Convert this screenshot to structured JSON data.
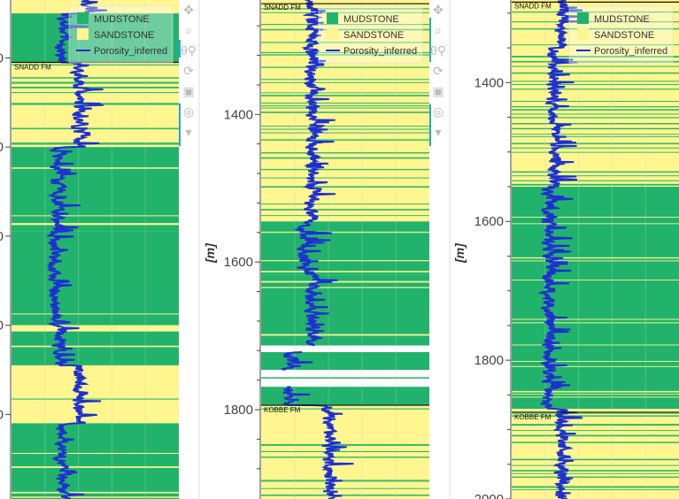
{
  "chart_data": {
    "type": "well-log-lithology",
    "legend": {
      "placement": "top-right",
      "entries": [
        {
          "label": "MUDSTONE",
          "color": "#21b36b",
          "kind": "patch"
        },
        {
          "label": "SANDSTONE",
          "color": "#fff68f",
          "kind": "patch"
        },
        {
          "label": "Porosity_inferred",
          "color": "#1f2fd1",
          "kind": "line"
        }
      ]
    },
    "colors": {
      "MUDSTONE": "#21b36b",
      "SANDSTONE": "#fff68f",
      "porosity": "#1f2fd1"
    },
    "grid": true,
    "panels": [
      {
        "ylabel": "",
        "ylim": [
          1200,
          1760
        ],
        "y_ticks": [
          1265,
          1365,
          1465,
          1565,
          1665
        ],
        "tick_labels": [
          "0",
          "0",
          "0",
          "0",
          "0"
        ],
        "formation_tops": [
          {
            "name": "SNADD FM",
            "depth": 1270
          }
        ],
        "zones": [
          {
            "from": 1200,
            "to": 1215,
            "base": "SANDSTONE",
            "streaks": 0.1,
            "phi": 0.45
          },
          {
            "from": 1215,
            "to": 1270,
            "base": "MUDSTONE",
            "streaks": 0.05,
            "phi": 0.3
          },
          {
            "from": 1270,
            "to": 1365,
            "base": "SANDSTONE",
            "streaks": 0.35,
            "phi": 0.4
          },
          {
            "from": 1365,
            "to": 1460,
            "base": "MUDSTONE",
            "streaks": 0.2,
            "phi": 0.27
          },
          {
            "from": 1460,
            "to": 1565,
            "base": "MUDSTONE",
            "streaks": 0.12,
            "phi": 0.25
          },
          {
            "from": 1565,
            "to": 1572,
            "base": "SANDSTONE",
            "streaks": 0,
            "phi": 0.3
          },
          {
            "from": 1572,
            "to": 1610,
            "base": "MUDSTONE",
            "streaks": 0.08,
            "phi": 0.28
          },
          {
            "from": 1610,
            "to": 1675,
            "base": "SANDSTONE",
            "streaks": 0.05,
            "phi": 0.4
          },
          {
            "from": 1675,
            "to": 1760,
            "base": "MUDSTONE",
            "streaks": 0.4,
            "phi": 0.3
          }
        ]
      },
      {
        "ylabel": "[m]",
        "ylim": [
          1245,
          1921
        ],
        "y_ticks": [
          1280,
          1320,
          1360,
          1400,
          1440,
          1480,
          1520,
          1560,
          1600,
          1640,
          1680,
          1720,
          1760,
          1800,
          1840,
          1880
        ],
        "tick_labels_major": {
          "1400": "1400",
          "1600": "1600",
          "1800": "1800"
        },
        "formation_tops": [
          {
            "name": "SNADD FM",
            "depth": 1250
          },
          {
            "name": "KOBBE FM",
            "depth": 1794
          }
        ],
        "zones": [
          {
            "from": 1245,
            "to": 1545,
            "base": "SANDSTONE",
            "streaks": 0.35,
            "phi": 0.3
          },
          {
            "from": 1545,
            "to": 1617,
            "base": "MUDSTONE",
            "streaks": 0.35,
            "phi": 0.25
          },
          {
            "from": 1617,
            "to": 1713,
            "base": "MUDSTONE",
            "streaks": 0.03,
            "phi": 0.3
          },
          {
            "from": 1713,
            "to": 1722,
            "base": "NONE",
            "streaks": 0,
            "phi": null
          },
          {
            "from": 1722,
            "to": 1746,
            "base": "MUDSTONE",
            "streaks": 0,
            "phi": 0.16
          },
          {
            "from": 1746,
            "to": 1769,
            "base": "NONE",
            "streaks": 0,
            "phi": null
          },
          {
            "from": 1769,
            "to": 1794,
            "base": "MUDSTONE",
            "streaks": 0,
            "phi": 0.15
          },
          {
            "from": 1794,
            "to": 1921,
            "base": "SANDSTONE",
            "streaks": 0.2,
            "phi": 0.4
          }
        ]
      },
      {
        "ylabel": "[m]",
        "ylim": [
          1281,
          2000
        ],
        "y_ticks": [
          1300,
          1350,
          1400,
          1450,
          1500,
          1550,
          1600,
          1650,
          1700,
          1750,
          1800,
          1850,
          1900,
          1950,
          2000
        ],
        "tick_labels_major": {
          "1400": "1400",
          "1600": "1600",
          "1800": "1800",
          "2000": "2000"
        },
        "formation_tops": [
          {
            "name": "SNADD FM",
            "depth": 1284
          },
          {
            "name": "KOBBE FM",
            "depth": 1875
          }
        ],
        "zones": [
          {
            "from": 1281,
            "to": 1350,
            "base": "SANDSTONE",
            "streaks": 0.3,
            "phi": 0.3
          },
          {
            "from": 1350,
            "to": 1550,
            "base": "SANDSTONE",
            "streaks": 0.5,
            "phi": 0.25
          },
          {
            "from": 1550,
            "to": 1870,
            "base": "MUDSTONE",
            "streaks": 0.2,
            "phi": 0.22
          },
          {
            "from": 1870,
            "to": 2000,
            "base": "SANDSTONE",
            "streaks": 0.45,
            "phi": 0.3
          }
        ]
      }
    ]
  },
  "toolbar": {
    "icons": [
      "pan-icon",
      "box-zoom-icon",
      "wheel-zoom-icon",
      "reset-icon",
      "save-icon",
      "crosshair-icon",
      "hover-icon"
    ],
    "glyphs": [
      "✥",
      "⌕",
      "θ⚲",
      "⟳",
      "▣",
      "◎",
      "▾"
    ]
  }
}
